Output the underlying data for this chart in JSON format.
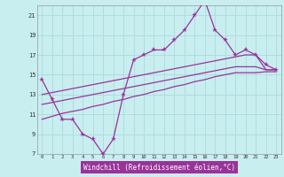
{
  "xlabel": "Windchill (Refroidissement éolien,°C)",
  "background_color": "#c8eef0",
  "grid_color": "#b0dde0",
  "line_color": "#993399",
  "label_bg": "#993399",
  "label_fg": "#ffffff",
  "hours": [
    0,
    1,
    2,
    3,
    4,
    5,
    6,
    7,
    8,
    9,
    10,
    11,
    12,
    13,
    14,
    15,
    16,
    17,
    18,
    19,
    20,
    21,
    22,
    23
  ],
  "temp_data": [
    14.5,
    12.5,
    10.5,
    10.5,
    9.0,
    8.5,
    7.0,
    8.5,
    13.0,
    16.5,
    17.0,
    17.5,
    17.5,
    18.5,
    19.5,
    21.0,
    22.5,
    19.5,
    18.5,
    17.0,
    17.5,
    17.0,
    16.0,
    15.5
  ],
  "line_upper": [
    13.0,
    13.2,
    13.4,
    13.6,
    13.8,
    14.0,
    14.2,
    14.4,
    14.6,
    14.8,
    15.0,
    15.2,
    15.4,
    15.6,
    15.8,
    16.0,
    16.2,
    16.4,
    16.6,
    16.8,
    17.0,
    17.0,
    15.5,
    15.5
  ],
  "line_mid": [
    12.0,
    12.2,
    12.4,
    12.6,
    12.8,
    13.0,
    13.2,
    13.4,
    13.6,
    13.8,
    14.0,
    14.2,
    14.4,
    14.6,
    14.8,
    15.0,
    15.2,
    15.4,
    15.6,
    15.8,
    15.8,
    15.8,
    15.5,
    15.5
  ],
  "line_lower": [
    10.5,
    10.8,
    11.1,
    11.3,
    11.5,
    11.8,
    12.0,
    12.3,
    12.5,
    12.8,
    13.0,
    13.3,
    13.5,
    13.8,
    14.0,
    14.3,
    14.5,
    14.8,
    15.0,
    15.2,
    15.2,
    15.2,
    15.3,
    15.3
  ],
  "ylim": [
    7,
    22
  ],
  "yticks": [
    7,
    9,
    11,
    13,
    15,
    17,
    19,
    21
  ],
  "xlim_min": -0.5,
  "xlim_max": 23.5
}
